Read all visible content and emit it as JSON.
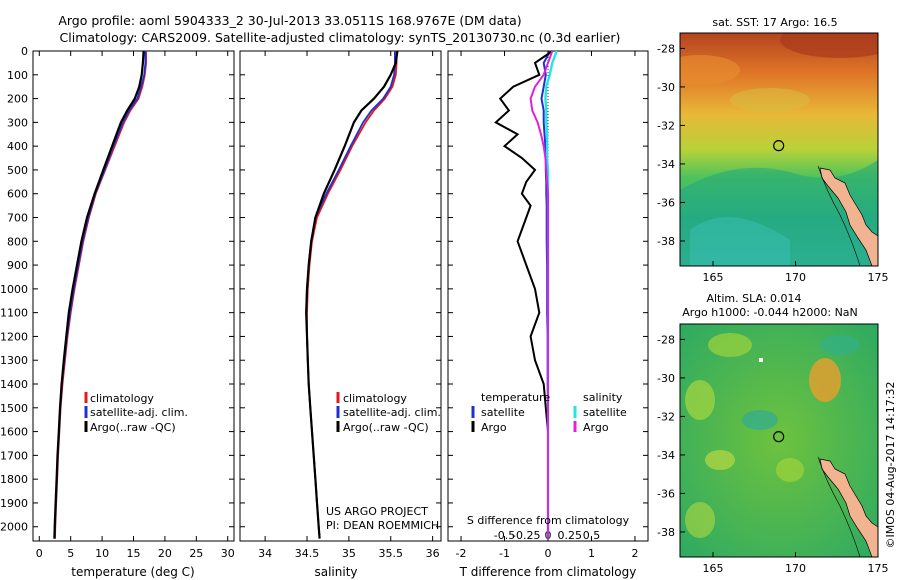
{
  "header": {
    "title_line1": "Argo profile: aoml 5904333_2 30-Jul-2013 33.0511S 168.9767E (DM data)",
    "title_line2": "Climatology: CARS2009. Satellite-adjusted climatology: synTS_20130730.nc (0.3d earlier)"
  },
  "side_stamp": "©IMOS 04-Aug-2017 14:17:32",
  "project_note": {
    "line1": "US ARGO PROJECT",
    "line2": "PI: DEAN ROEMMICH"
  },
  "colors": {
    "climatology": "#e31a1c",
    "satellite": "#1f2fd6",
    "argo": "#000000",
    "sat_salinity": "#22e5e5",
    "argo_salinity": "#e020e0"
  },
  "chart_data": [
    {
      "type": "line",
      "id": "temperature",
      "xlabel": "temperature (deg C)",
      "ylabel": "",
      "xlim": [
        -1,
        31
      ],
      "ylim": [
        2060,
        0
      ],
      "xticks": [
        0,
        5,
        10,
        15,
        20,
        25,
        30
      ],
      "yticks": [
        0,
        100,
        200,
        300,
        400,
        500,
        600,
        700,
        800,
        900,
        1000,
        1100,
        1200,
        1300,
        1400,
        1500,
        1600,
        1700,
        1800,
        1900,
        2000
      ],
      "legend": [
        "climatology",
        "satellite-adj. clim.",
        "Argo(..raw -QC)"
      ],
      "depth": [
        0,
        50,
        100,
        150,
        200,
        250,
        300,
        400,
        500,
        600,
        700,
        800,
        900,
        1000,
        1100,
        1200,
        1300,
        1400,
        1500,
        1600,
        1700,
        1800,
        1900,
        2000,
        2050
      ],
      "series": [
        {
          "name": "climatology",
          "values": [
            17.0,
            17.0,
            16.8,
            16.4,
            15.8,
            14.5,
            13.5,
            12.0,
            10.5,
            9.0,
            7.9,
            7.0,
            6.3,
            5.6,
            5.0,
            4.5,
            4.1,
            3.7,
            3.4,
            3.2,
            3.0,
            2.85,
            2.7,
            2.55,
            2.5
          ]
        },
        {
          "name": "satellite-adj. clim.",
          "values": [
            16.9,
            16.9,
            16.7,
            16.2,
            15.6,
            14.3,
            13.3,
            11.8,
            10.4,
            8.9,
            7.8,
            6.9,
            6.2,
            5.5,
            4.9,
            4.4,
            4.0,
            3.6,
            3.35,
            3.15,
            2.95,
            2.8,
            2.65,
            2.5,
            2.45
          ]
        },
        {
          "name": "Argo(..raw -QC)",
          "values": [
            16.6,
            16.5,
            16.3,
            15.9,
            15.2,
            14.0,
            13.0,
            11.6,
            10.2,
            8.8,
            7.6,
            6.7,
            6.0,
            5.3,
            4.7,
            4.3,
            3.9,
            3.55,
            3.3,
            3.1,
            2.9,
            2.75,
            2.6,
            2.45,
            2.4
          ]
        }
      ]
    },
    {
      "type": "line",
      "id": "salinity",
      "xlabel": "salinity",
      "xlim": [
        33.7,
        36.1
      ],
      "ylim": [
        2060,
        0
      ],
      "xticks": [
        34,
        34.5,
        35,
        35.5,
        36
      ],
      "legend": [
        "climatology",
        "satellite-adj. clim.",
        "Argo(..raw -QC)"
      ],
      "depth": [
        0,
        50,
        100,
        150,
        200,
        250,
        300,
        400,
        500,
        600,
        700,
        800,
        900,
        1000,
        1100,
        1200,
        1300,
        1400,
        1500,
        1600,
        1700,
        1800,
        1900,
        2000,
        2050
      ],
      "series": [
        {
          "name": "climatology",
          "values": [
            35.57,
            35.57,
            35.56,
            35.52,
            35.43,
            35.3,
            35.2,
            35.04,
            34.9,
            34.75,
            34.62,
            34.56,
            34.53,
            34.51,
            34.5,
            34.5,
            34.51,
            34.52,
            34.54,
            34.56,
            34.58,
            34.6,
            34.62,
            34.64,
            34.65
          ]
        },
        {
          "name": "satellite-adj. clim.",
          "values": [
            35.55,
            35.55,
            35.54,
            35.5,
            35.41,
            35.27,
            35.17,
            35.02,
            34.88,
            34.73,
            34.6,
            34.55,
            34.52,
            34.5,
            34.49,
            34.5,
            34.51,
            34.52,
            34.54,
            34.56,
            34.58,
            34.6,
            34.62,
            34.64,
            34.65
          ]
        },
        {
          "name": "Argo(..raw -QC)",
          "values": [
            35.58,
            35.56,
            35.5,
            35.42,
            35.3,
            35.15,
            35.06,
            34.95,
            34.83,
            34.7,
            34.6,
            34.55,
            34.52,
            34.5,
            34.49,
            34.5,
            34.51,
            34.52,
            34.54,
            34.56,
            34.58,
            34.6,
            34.62,
            34.64,
            34.65
          ]
        }
      ]
    },
    {
      "type": "line",
      "id": "difference",
      "xlabel": "T difference from climatology",
      "xlabel_top": "S difference from climatology",
      "t_xlim": [
        -2.3,
        2.3
      ],
      "t_xticks": [
        -2,
        -1,
        0,
        1,
        2
      ],
      "s_xticks_labels": [
        "-0.5",
        "-0.25",
        "0",
        "0.25",
        "0.5"
      ],
      "s_xticks": [
        -0.5,
        -0.25,
        0,
        0.25,
        0.5
      ],
      "s_xlim": [
        -1.15,
        1.15
      ],
      "ylim": [
        2060,
        0
      ],
      "legend_temperature": {
        "title": "temperature",
        "items": [
          "satellite",
          "Argo"
        ]
      },
      "legend_salinity": {
        "title": "salinity",
        "items": [
          "satellite",
          "Argo"
        ]
      },
      "depth": [
        0,
        50,
        100,
        150,
        200,
        250,
        300,
        350,
        400,
        450,
        500,
        550,
        600,
        650,
        700,
        800,
        900,
        1000,
        1100,
        1200,
        1300,
        1400,
        1500,
        1600,
        1700,
        1800,
        1900,
        2000,
        2050
      ],
      "series": [
        {
          "name": "T satellite",
          "values": [
            0.05,
            -0.1,
            -0.05,
            -0.1,
            -0.15,
            -0.1,
            -0.1,
            -0.08,
            -0.06,
            -0.05,
            -0.05,
            -0.04,
            -0.04,
            -0.03,
            -0.03,
            -0.03,
            -0.02,
            -0.02,
            -0.02,
            -0.01,
            -0.01,
            -0.01,
            0.0,
            0.0,
            0.0,
            0.0,
            0.0,
            0.0,
            0.0
          ]
        },
        {
          "name": "T Argo",
          "values": [
            0.1,
            -0.3,
            -0.2,
            -0.8,
            -1.1,
            -0.9,
            -1.2,
            -0.7,
            -1.0,
            -0.6,
            -0.3,
            -0.5,
            -0.6,
            -0.4,
            -0.5,
            -0.7,
            -0.5,
            -0.3,
            -0.2,
            -0.4,
            -0.3,
            -0.1,
            -0.05,
            0.0,
            0.0,
            0.0,
            0.0,
            0.0,
            0.0
          ]
        },
        {
          "name": "S satellite",
          "values": [
            0.1,
            0.05,
            0.02,
            -0.02,
            -0.03,
            -0.02,
            -0.02,
            -0.01,
            -0.01,
            -0.01,
            0.0,
            0.0,
            0.0,
            0.0,
            0.0,
            0.0,
            0.0,
            0.0,
            0.0,
            0.0,
            0.0,
            0.0,
            0.0,
            0.0,
            0.0,
            0.0,
            0.0,
            0.0,
            0.0
          ]
        },
        {
          "name": "S Argo",
          "values": [
            0.05,
            0.0,
            -0.05,
            -0.15,
            -0.2,
            -0.18,
            -0.12,
            -0.08,
            -0.05,
            -0.03,
            -0.02,
            -0.01,
            0.0,
            0.0,
            0.0,
            0.0,
            0.0,
            0.0,
            0.0,
            0.0,
            0.0,
            0.0,
            0.0,
            0.0,
            0.0,
            0.0,
            0.0,
            0.0,
            0.0
          ]
        }
      ]
    },
    {
      "type": "heatmap",
      "id": "sst-map",
      "title": "sat. SST: 17 Argo: 16.5",
      "xlim": [
        163,
        175
      ],
      "ylim": [
        -39.3,
        -27.2
      ],
      "xticks": [
        165,
        170,
        175
      ],
      "yticks": [
        -28,
        -30,
        -32,
        -34,
        -36,
        -38
      ],
      "marker": {
        "lon": 168.98,
        "lat": -33.05
      }
    },
    {
      "type": "heatmap",
      "id": "sla-map",
      "title_line1": "Altim. SLA: 0.014",
      "title_line2": "Argo h1000: -0.044 h2000: NaN",
      "xlim": [
        163,
        175
      ],
      "ylim": [
        -39.3,
        -27.2
      ],
      "xticks": [
        165,
        170,
        175
      ],
      "yticks": [
        -28,
        -30,
        -32,
        -34,
        -36,
        -38
      ],
      "marker": {
        "lon": 168.98,
        "lat": -33.05
      }
    }
  ]
}
